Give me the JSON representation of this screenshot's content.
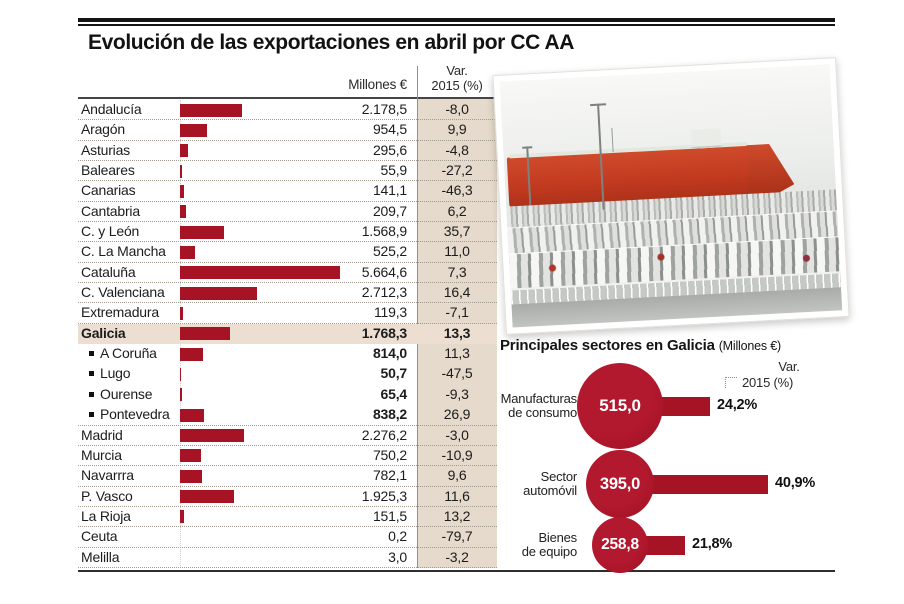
{
  "title": "Evolución de las exportaciones en abril por CC AA",
  "colors": {
    "accent_red": "#a51325",
    "var_column_beige": "#e5dacb",
    "galicia_row_highlight": "#ecdfd2",
    "ship_red": "#c23a20"
  },
  "table": {
    "value_header": "Millones €",
    "var_header_line1": "Var.",
    "var_header_line2": "2015 (%)",
    "rows": [
      {
        "label": "Andalucía",
        "value": "2.178,5",
        "value_num": 2178.5,
        "var": "-8,0"
      },
      {
        "label": "Aragón",
        "value": "954,5",
        "value_num": 954.5,
        "var": "9,9"
      },
      {
        "label": "Asturias",
        "value": "295,6",
        "value_num": 295.6,
        "var": "-4,8"
      },
      {
        "label": "Baleares",
        "value": "55,9",
        "value_num": 55.9,
        "var": "-27,2"
      },
      {
        "label": "Canarias",
        "value": "141,1",
        "value_num": 141.1,
        "var": "-46,3"
      },
      {
        "label": "Cantabria",
        "value": "209,7",
        "value_num": 209.7,
        "var": "6,2"
      },
      {
        "label": "C. y León",
        "value": "1.568,9",
        "value_num": 1568.9,
        "var": "35,7"
      },
      {
        "label": "C. La Mancha",
        "value": "525,2",
        "value_num": 525.2,
        "var": "11,0"
      },
      {
        "label": "Cataluña",
        "value": "5.664,6",
        "value_num": 5664.6,
        "var": "7,3"
      },
      {
        "label": "C. Valenciana",
        "value": "2.712,3",
        "value_num": 2712.3,
        "var": "16,4"
      },
      {
        "label": "Extremadura",
        "value": "119,3",
        "value_num": 119.3,
        "var": "-7,1"
      },
      {
        "label": "Galicia",
        "value": "1.768,3",
        "value_num": 1768.3,
        "var": "13,3",
        "bold_all": true,
        "highlight": true,
        "sep": false
      },
      {
        "label": "A Coruña",
        "value": "814,0",
        "value_num": 814.0,
        "var": "11,3",
        "sub": true,
        "bold_value": true,
        "sep": false
      },
      {
        "label": "Lugo",
        "value": "50,7",
        "value_num": 50.7,
        "var": "-47,5",
        "sub": true,
        "bold_value": true,
        "sep": false
      },
      {
        "label": "Ourense",
        "value": "65,4",
        "value_num": 65.4,
        "var": "-9,3",
        "sub": true,
        "bold_value": true,
        "sep": false
      },
      {
        "label": "Pontevedra",
        "value": "838,2",
        "value_num": 838.2,
        "var": "26,9",
        "sub": true,
        "bold_value": true
      },
      {
        "label": "Madrid",
        "value": "2.276,2",
        "value_num": 2276.2,
        "var": "-3,0"
      },
      {
        "label": "Murcia",
        "value": "750,2",
        "value_num": 750.2,
        "var": "-10,9"
      },
      {
        "label": "Navarrra",
        "value": "782,1",
        "value_num": 782.1,
        "var": "9,6"
      },
      {
        "label": "P. Vasco",
        "value": "1.925,3",
        "value_num": 1925.3,
        "var": "11,6"
      },
      {
        "label": "La Rioja",
        "value": "151,5",
        "value_num": 151.5,
        "var": "13,2"
      },
      {
        "label": "Ceuta",
        "value": "0,2",
        "value_num": 0.2,
        "var": "-79,7"
      },
      {
        "label": "Melilla",
        "value": "3,0",
        "value_num": 3.0,
        "var": "-3,2"
      }
    ]
  },
  "sectors": {
    "title": "Principales sectores en Galicia",
    "title_suffix": "(Millones €)",
    "legend_line1": "Var.",
    "legend_line2": "2015 (%)",
    "items": [
      {
        "label_line1": "Manufacturas",
        "label_line2": "de consumo",
        "value": "515,0",
        "value_num": 515.0,
        "var_label": "24,2%",
        "var_num": 24.2
      },
      {
        "label_line1": "Sector",
        "label_line2": "automóvil",
        "value": "395,0",
        "value_num": 395.0,
        "var_label": "40,9%",
        "var_num": 40.9
      },
      {
        "label_line1": "Bienes",
        "label_line2": "de equipo",
        "value": "258,8",
        "value_num": 258.8,
        "var_label": "21,8%",
        "var_num": 21.8
      }
    ]
  },
  "chart_data": [
    {
      "type": "bar",
      "orientation": "horizontal",
      "title": "Evolución de las exportaciones en abril por CC AA",
      "categories": [
        "Andalucía",
        "Aragón",
        "Asturias",
        "Baleares",
        "Canarias",
        "Cantabria",
        "C. y León",
        "C. La Mancha",
        "Cataluña",
        "C. Valenciana",
        "Extremadura",
        "Galicia",
        "A Coruña",
        "Lugo",
        "Ourense",
        "Pontevedra",
        "Madrid",
        "Murcia",
        "Navarrra",
        "P. Vasco",
        "La Rioja",
        "Ceuta",
        "Melilla"
      ],
      "series": [
        {
          "name": "Millones €",
          "values": [
            2178.5,
            954.5,
            295.6,
            55.9,
            141.1,
            209.7,
            1568.9,
            525.2,
            5664.6,
            2712.3,
            119.3,
            1768.3,
            814.0,
            50.7,
            65.4,
            838.2,
            2276.2,
            750.2,
            782.1,
            1925.3,
            151.5,
            0.2,
            3.0
          ]
        },
        {
          "name": "Var. 2015 (%)",
          "values": [
            -8.0,
            9.9,
            -4.8,
            -27.2,
            -46.3,
            6.2,
            35.7,
            11.0,
            7.3,
            16.4,
            -7.1,
            13.3,
            11.3,
            -47.5,
            -9.3,
            26.9,
            -3.0,
            -10.9,
            9.6,
            11.6,
            13.2,
            -79.7,
            -3.2
          ]
        }
      ],
      "xlim": [
        0,
        5700
      ],
      "highlighted_category": "Galicia"
    },
    {
      "type": "bar",
      "title": "Principales sectores en Galicia (Millones €)",
      "categories": [
        "Manufacturas de consumo",
        "Sector automóvil",
        "Bienes de equipo"
      ],
      "series": [
        {
          "name": "Millones €",
          "values": [
            515.0,
            395.0,
            258.8
          ]
        },
        {
          "name": "Var. 2015 (%)",
          "values": [
            24.2,
            40.9,
            21.8
          ]
        }
      ],
      "legend_position": "top-right"
    }
  ]
}
